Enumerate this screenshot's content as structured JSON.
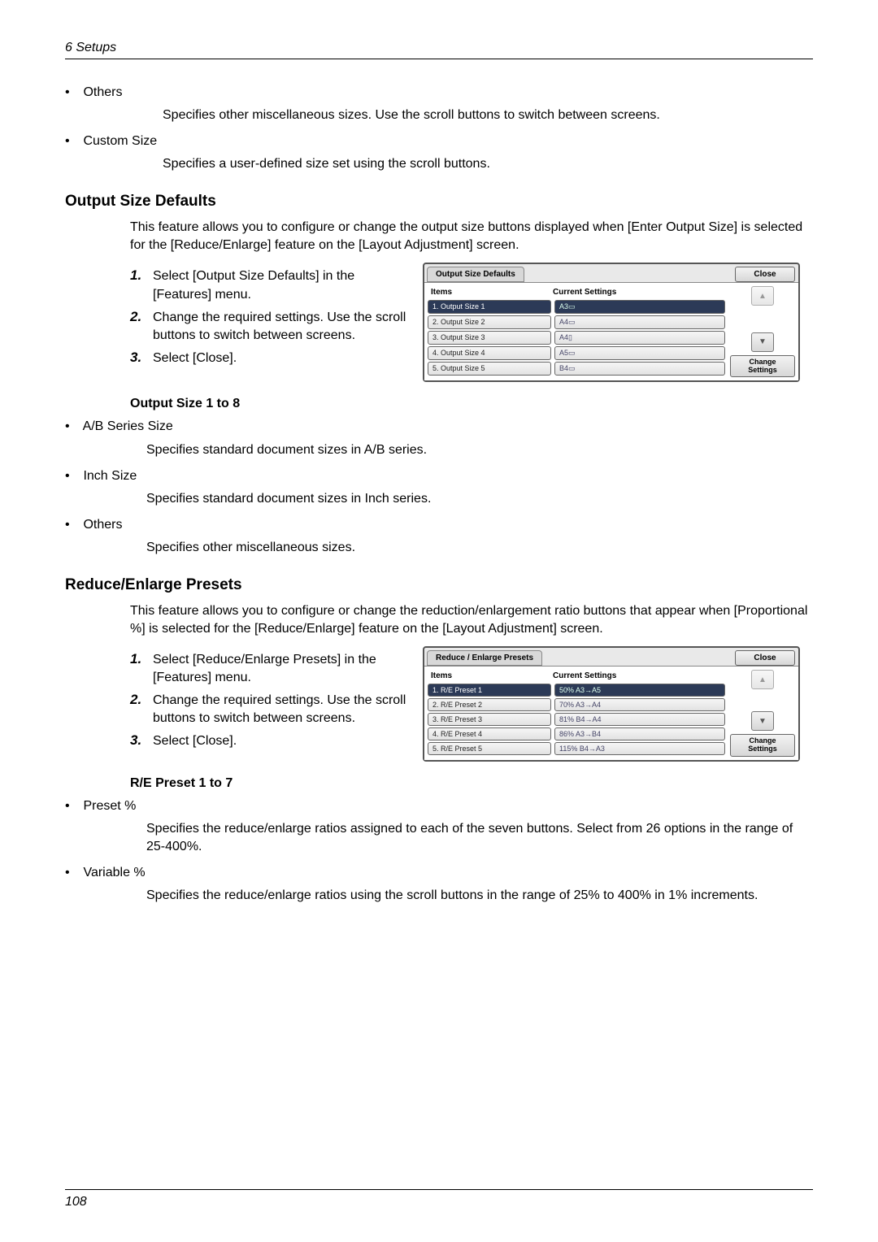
{
  "header": {
    "chapter": "6  Setups"
  },
  "footer": {
    "page": "108"
  },
  "sec_others": {
    "bullet": "Others",
    "text": "Specifies other miscellaneous sizes. Use the scroll buttons to switch between screens."
  },
  "sec_custom": {
    "bullet": "Custom Size",
    "text": "Specifies a user-defined size set using the scroll buttons."
  },
  "output_size": {
    "title": "Output Size Defaults",
    "intro": "This feature allows you to configure or change the output size buttons displayed when [Enter Output Size] is selected for the [Reduce/Enlarge] feature on the [Layout Adjustment] screen.",
    "step1": "Select [Output Size Defaults] in the [Features] menu.",
    "step2": "Change the required settings. Use the scroll buttons to switch between screens.",
    "step3": "Select [Close].",
    "sub_title": "Output Size 1 to 8",
    "b1": "A/B Series Size",
    "b1t": "Specifies standard document sizes in A/B series.",
    "b2": "Inch Size",
    "b2t": "Specifies standard document sizes in Inch series.",
    "b3": "Others",
    "b3t": "Specifies other miscellaneous sizes."
  },
  "reduce_enlarge": {
    "title": "Reduce/Enlarge Presets",
    "intro": "This feature allows you to configure or change the reduction/enlargement ratio buttons that appear when [Proportional %] is selected for the [Reduce/Enlarge] feature on the [Layout Adjustment] screen.",
    "step1": "Select [Reduce/Enlarge Presets] in the [Features] menu.",
    "step2": "Change the required settings. Use the scroll buttons to switch between screens.",
    "step3": "Select [Close].",
    "sub_title": "R/E Preset 1 to 7",
    "b1": "Preset %",
    "b1t": "Specifies the reduce/enlarge ratios assigned to each of the seven buttons. Select from 26 options in the range of 25-400%.",
    "b2": "Variable %",
    "b2t": "Specifies the reduce/enlarge ratios using the scroll buttons in the range of 25% to 400% in 1% increments."
  },
  "dlg1": {
    "title": "Output Size Defaults",
    "close": "Close",
    "items_label": "Items",
    "settings_label": "Current Settings",
    "change": "Change Settings",
    "rows": [
      {
        "n": "1.",
        "item": "Output Size 1",
        "val": "A3▭",
        "sel": true
      },
      {
        "n": "2.",
        "item": "Output Size 2",
        "val": "A4▭",
        "sel": false
      },
      {
        "n": "3.",
        "item": "Output Size 3",
        "val": "A4▯",
        "sel": false
      },
      {
        "n": "4.",
        "item": "Output Size 4",
        "val": "A5▭",
        "sel": false
      },
      {
        "n": "5.",
        "item": "Output Size 5",
        "val": "B4▭",
        "sel": false
      }
    ]
  },
  "dlg2": {
    "title": "Reduce / Enlarge Presets",
    "close": "Close",
    "items_label": "Items",
    "settings_label": "Current Settings",
    "change": "Change Settings",
    "rows": [
      {
        "n": "1.",
        "item": "R/E Preset 1",
        "val": "50%  A3→A5",
        "sel": true
      },
      {
        "n": "2.",
        "item": "R/E Preset 2",
        "val": "70%  A3→A4",
        "sel": false
      },
      {
        "n": "3.",
        "item": "R/E Preset 3",
        "val": "81%  B4→A4",
        "sel": false
      },
      {
        "n": "4.",
        "item": "R/E Preset 4",
        "val": "86%  A3→B4",
        "sel": false
      },
      {
        "n": "5.",
        "item": "R/E Preset 5",
        "val": "115%  B4→A3",
        "sel": false
      }
    ]
  }
}
